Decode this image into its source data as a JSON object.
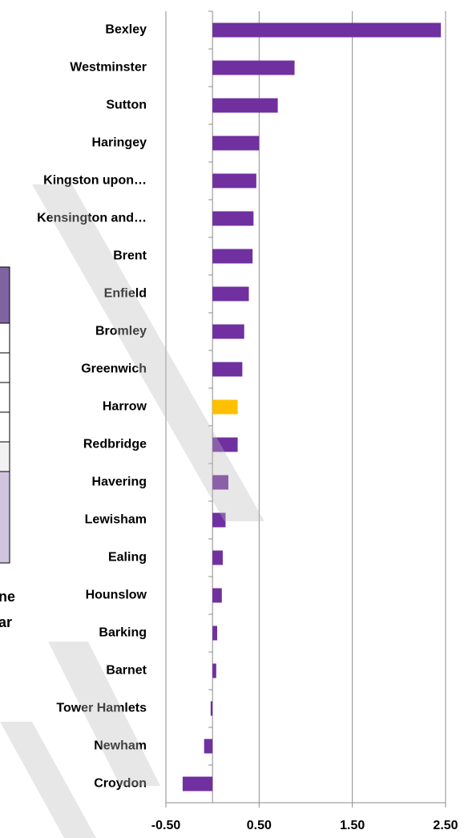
{
  "chart_data": {
    "type": "hbar",
    "categories": [
      "Bexley",
      "Westminster",
      "Sutton",
      "Haringey",
      "Kingston upon…",
      "Kensington and…",
      "Brent",
      "Enfield",
      "Bromley",
      "Greenwich",
      "Harrow",
      "Redbridge",
      "Havering",
      "Lewisham",
      "Ealing",
      "Hounslow",
      "Barking",
      "Barnet",
      "Tower Hamlets",
      "Newham",
      "Croydon"
    ],
    "values": [
      2.45,
      0.88,
      0.7,
      0.5,
      0.47,
      0.44,
      0.43,
      0.39,
      0.34,
      0.32,
      0.27,
      0.27,
      0.17,
      0.14,
      0.11,
      0.1,
      0.05,
      0.04,
      -0.02,
      -0.09,
      -0.32
    ],
    "colors": [
      "#7030a0",
      "#7030a0",
      "#7030a0",
      "#7030a0",
      "#7030a0",
      "#7030a0",
      "#7030a0",
      "#7030a0",
      "#7030a0",
      "#7030a0",
      "#ffc000",
      "#7030a0",
      "#7030a0",
      "#7030a0",
      "#7030a0",
      "#7030a0",
      "#7030a0",
      "#7030a0",
      "#7030a0",
      "#7030a0",
      "#7030a0"
    ],
    "xlim": [
      -0.5,
      2.5
    ],
    "xticks": [
      {
        "value": -0.5,
        "label": "-0.50"
      },
      {
        "value": 0.5,
        "label": "0.50"
      },
      {
        "value": 1.5,
        "label": "1.50"
      },
      {
        "value": 2.5,
        "label": "2.50"
      }
    ],
    "grid": true
  },
  "fragments": [
    "ne",
    "ar"
  ]
}
